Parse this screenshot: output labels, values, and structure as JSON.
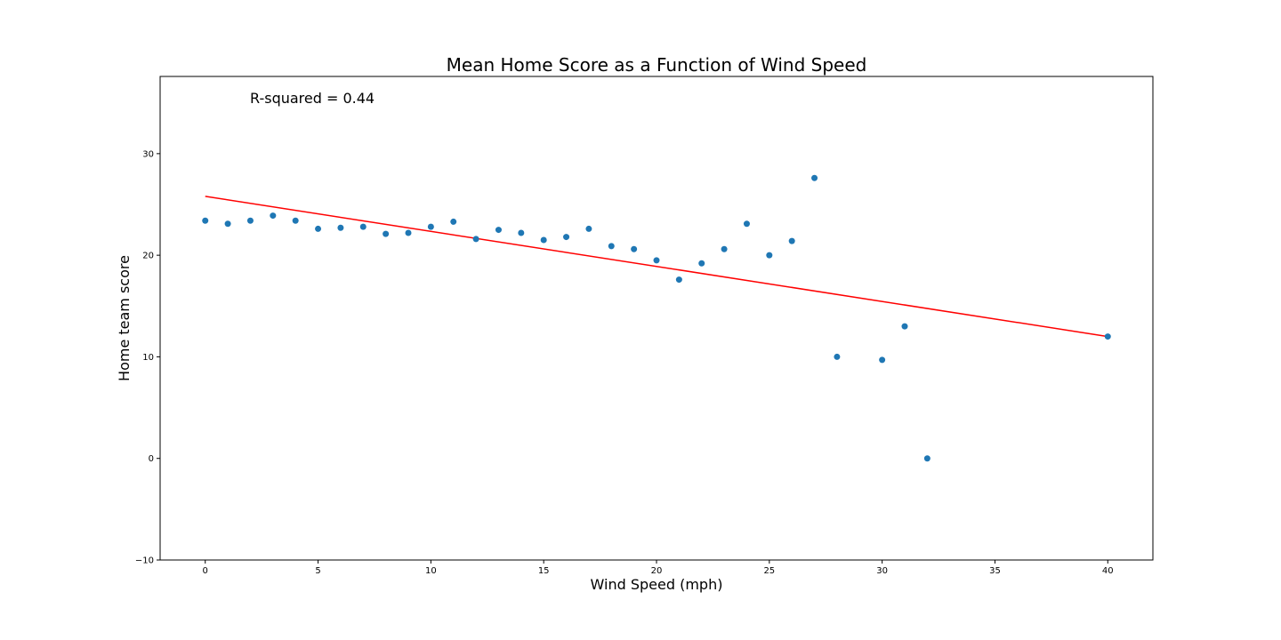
{
  "chart_data": {
    "type": "scatter",
    "title": "Mean Home Score as a Function of Wind Speed",
    "xlabel": "Wind Speed (mph)",
    "ylabel": "Home team score",
    "annotation": "R-squared = 0.44",
    "xlim": [
      -2,
      42
    ],
    "ylim": [
      -10,
      37.6
    ],
    "xticks": [
      0,
      5,
      10,
      15,
      20,
      25,
      30,
      35,
      40
    ],
    "yticks": [
      -10,
      0,
      10,
      20,
      30
    ],
    "xtick_labels": [
      "0",
      "5",
      "10",
      "15",
      "20",
      "25",
      "30",
      "35",
      "40"
    ],
    "ytick_labels": [
      "−10",
      "0",
      "10",
      "20",
      "30"
    ],
    "grid": false,
    "series": [
      {
        "type": "scatter",
        "color": "#1f77b4",
        "x": [
          0,
          1,
          2,
          3,
          4,
          5,
          6,
          7,
          8,
          9,
          10,
          11,
          12,
          13,
          14,
          15,
          16,
          17,
          18,
          19,
          20,
          21,
          22,
          23,
          24,
          25,
          26,
          27,
          28,
          30,
          31,
          32,
          40
        ],
        "y": [
          23.4,
          23.1,
          23.4,
          23.9,
          23.4,
          22.6,
          22.7,
          22.8,
          22.1,
          22.2,
          22.8,
          23.3,
          21.6,
          22.5,
          22.2,
          21.5,
          21.8,
          22.6,
          20.9,
          20.6,
          19.5,
          17.6,
          19.2,
          20.6,
          23.1,
          20.0,
          21.4,
          27.6,
          10.0,
          9.7,
          13.0,
          0.0,
          12.0
        ]
      },
      {
        "type": "line",
        "color": "#ff0000",
        "x": [
          0,
          40
        ],
        "y": [
          25.8,
          12.0
        ]
      }
    ]
  }
}
